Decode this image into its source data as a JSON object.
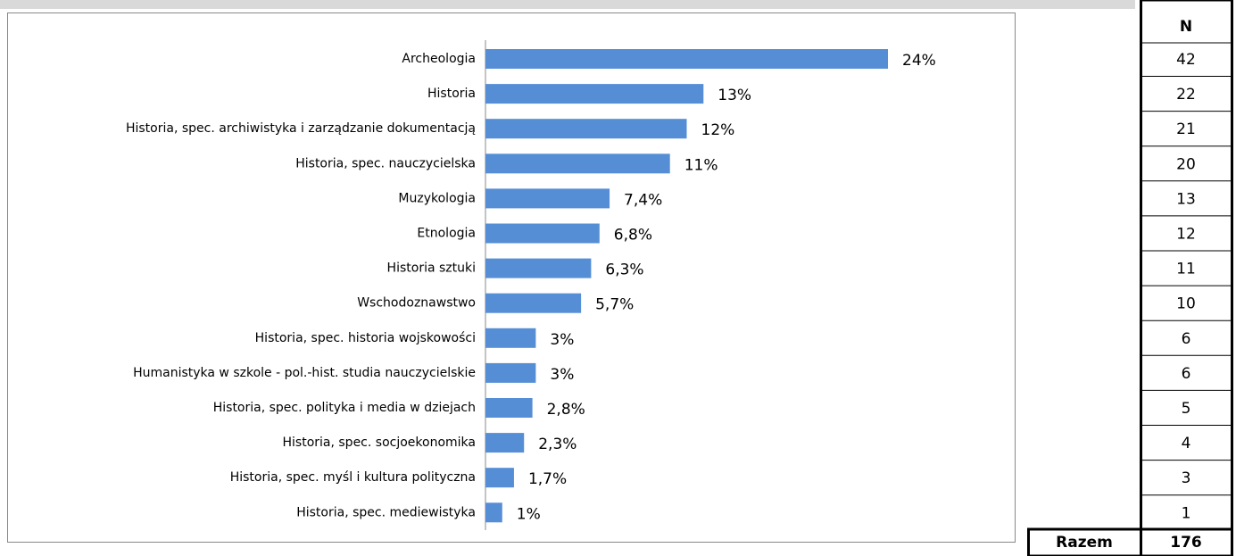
{
  "chart_data": {
    "type": "bar",
    "orientation": "horizontal",
    "color": "#558ed5",
    "categories": [
      "Archeologia",
      "Historia",
      "Historia, spec. archiwistyka i zarządzanie dokumentacją",
      "Historia, spec. nauczycielska",
      "Muzykologia",
      "Etnologia",
      "Historia sztuki",
      "Wschodoznawstwo",
      "Historia, spec. historia wojskowości",
      "Humanistyka w szkole - pol.-hist. studia nauczycielskie",
      "Historia, spec. polityka i media w dziejach",
      "Historia, spec. socjoekonomika",
      "Historia, spec. myśl i kultura polityczna",
      "Historia, spec. mediewistyka"
    ],
    "values": [
      24,
      13,
      12,
      11,
      7.4,
      6.8,
      6.3,
      5.7,
      3,
      3,
      2.8,
      2.3,
      1.7,
      1
    ],
    "value_labels": [
      "24%",
      "13%",
      "12%",
      "11%",
      "7,4%",
      "6,8%",
      "6,3%",
      "5,7%",
      "3%",
      "3%",
      "2,8%",
      "2,3%",
      "1,7%",
      "1%"
    ]
  },
  "table": {
    "header": "N",
    "rows": [
      42,
      22,
      21,
      20,
      13,
      12,
      11,
      10,
      6,
      6,
      5,
      4,
      3,
      1
    ],
    "total_label": "Razem",
    "total": 176
  }
}
